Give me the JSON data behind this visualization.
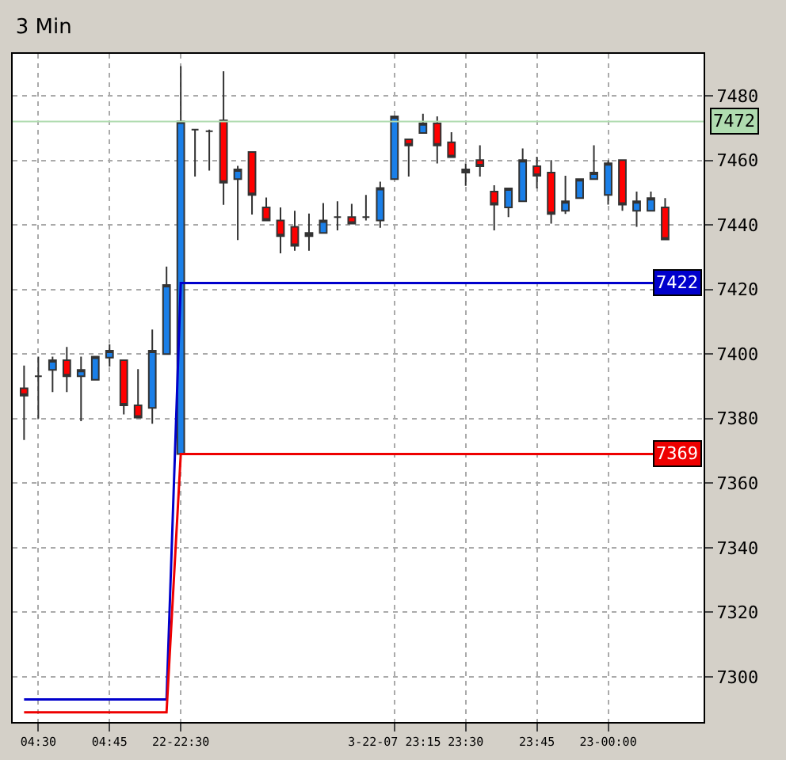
{
  "chart_data": {
    "type": "candlestick",
    "title": "3 Min",
    "categories": [
      null,
      "04:30",
      null,
      null,
      null,
      null,
      "04:45",
      null,
      null,
      null,
      null,
      "22-22:30",
      null,
      null,
      null,
      null,
      null,
      null,
      null,
      null,
      null,
      null,
      null,
      null,
      null,
      null,
      "3-22-07 23:15",
      null,
      null,
      null,
      null,
      "23:30",
      null,
      null,
      null,
      null,
      "23:45",
      null,
      null,
      null,
      null,
      "23-00:00",
      null,
      null,
      null,
      null
    ],
    "ohlc": [
      [
        7389.4,
        7396.4,
        7373.4,
        7387.1
      ],
      [
        7393.1,
        7399.2,
        7380.0,
        7393.1
      ],
      [
        7395.1,
        7399.2,
        7388.2,
        7398.1
      ],
      [
        7398.1,
        7402.2,
        7388.2,
        7393.1
      ],
      [
        7393.1,
        7399.2,
        7379.2,
        7395.1
      ],
      [
        7392.0,
        7399.2,
        7392.0,
        7399.2
      ],
      [
        7398.9,
        7403.0,
        7396.1,
        7401.0
      ],
      [
        7398.1,
        7398.1,
        7381.3,
        7384.1
      ],
      [
        7384.1,
        7395.3,
        7380.3,
        7380.3
      ],
      [
        7383.3,
        7407.6,
        7378.4,
        7401.0
      ],
      [
        7400.0,
        7427.1,
        7400.0,
        7421.4
      ],
      [
        7369.0,
        7489.2,
        7369.0,
        7472.0
      ],
      [
        7469.5,
        7469.5,
        7455.0,
        7469.5
      ],
      [
        7469.0,
        7469.5,
        7456.8,
        7469.0
      ],
      [
        7472.4,
        7487.6,
        7446.2,
        7453.1
      ],
      [
        7454.2,
        7458.3,
        7435.3,
        7457.2
      ],
      [
        7462.6,
        7462.6,
        7443.2,
        7449.3
      ],
      [
        7445.4,
        7448.5,
        7441.4,
        7441.4
      ],
      [
        7441.4,
        7445.4,
        7431.2,
        7436.5
      ],
      [
        7439.4,
        7444.4,
        7432.0,
        7433.5
      ],
      [
        7436.5,
        7443.5,
        7432.0,
        7437.5
      ],
      [
        7437.5,
        7446.8,
        7437.5,
        7441.4
      ],
      [
        7442.4,
        7447.3,
        7438.3,
        7442.4
      ],
      [
        7442.4,
        7446.5,
        7440.4,
        7440.4
      ],
      [
        7442.4,
        7449.3,
        7441.4,
        7442.4
      ],
      [
        7441.4,
        7453.4,
        7439.1,
        7451.4
      ],
      [
        7454.2,
        7473.6,
        7454.2,
        7473.6
      ],
      [
        7466.5,
        7466.5,
        7455.0,
        7464.6
      ],
      [
        7468.5,
        7474.4,
        7468.5,
        7471.5
      ],
      [
        7471.5,
        7473.6,
        7459.0,
        7464.6
      ],
      [
        7465.6,
        7468.7,
        7461.0,
        7461.0
      ],
      [
        7456.2,
        7459.0,
        7452.1,
        7457.2
      ],
      [
        7460.1,
        7464.7,
        7455.0,
        7458.2
      ],
      [
        7450.3,
        7452.3,
        7438.3,
        7446.3
      ],
      [
        7445.4,
        7451.3,
        7442.4,
        7451.3
      ],
      [
        7447.3,
        7463.7,
        7447.3,
        7460.1
      ],
      [
        7458.2,
        7461.1,
        7451.3,
        7455.2
      ],
      [
        7456.2,
        7460.1,
        7440.4,
        7443.4
      ],
      [
        7444.4,
        7455.2,
        7443.4,
        7447.3
      ],
      [
        7448.3,
        7454.2,
        7448.3,
        7454.2
      ],
      [
        7454.2,
        7464.7,
        7454.2,
        7456.2
      ],
      [
        7449.3,
        7460.1,
        7446.3,
        7459.1
      ],
      [
        7460.1,
        7460.1,
        7444.4,
        7446.3
      ],
      [
        7444.4,
        7450.3,
        7439.4,
        7447.3
      ],
      [
        7444.4,
        7450.3,
        7444.4,
        7448.3
      ],
      [
        7445.4,
        7448.3,
        7435.5,
        7435.5
      ]
    ],
    "series": [
      {
        "type": "line",
        "color": "#0000cc",
        "values": [
          7293,
          7293,
          7293,
          7293,
          7293,
          7293,
          7293,
          7293,
          7293,
          7293,
          7293,
          7422,
          7422,
          7422,
          7422,
          7422,
          7422,
          7422,
          7422,
          7422,
          7422,
          7422,
          7422,
          7422,
          7422,
          7422,
          7422,
          7422,
          7422,
          7422,
          7422,
          7422,
          7422,
          7422,
          7422,
          7422,
          7422,
          7422,
          7422,
          7422,
          7422,
          7422,
          7422,
          7422,
          7422,
          7422
        ]
      },
      {
        "type": "line",
        "color": "#ee0000",
        "values": [
          7289,
          7289,
          7289,
          7289,
          7289,
          7289,
          7289,
          7289,
          7289,
          7289,
          7289,
          7369,
          7369,
          7369,
          7369,
          7369,
          7369,
          7369,
          7369,
          7369,
          7369,
          7369,
          7369,
          7369,
          7369,
          7369,
          7369,
          7369,
          7369,
          7369,
          7369,
          7369,
          7369,
          7369,
          7369,
          7369,
          7369,
          7369,
          7369,
          7369,
          7369,
          7369,
          7369,
          7369,
          7369,
          7369
        ]
      }
    ],
    "annotations": [
      "7422",
      "7369"
    ],
    "ref_lines": [
      {
        "axis": "y",
        "value": 7472,
        "label": "7472",
        "color": "#b0dcb0"
      }
    ],
    "ylim": [
      7286,
      7493
    ],
    "yticks": [
      7300,
      7320,
      7340,
      7360,
      7380,
      7400,
      7420,
      7440,
      7460,
      7480
    ],
    "grid": true
  }
}
